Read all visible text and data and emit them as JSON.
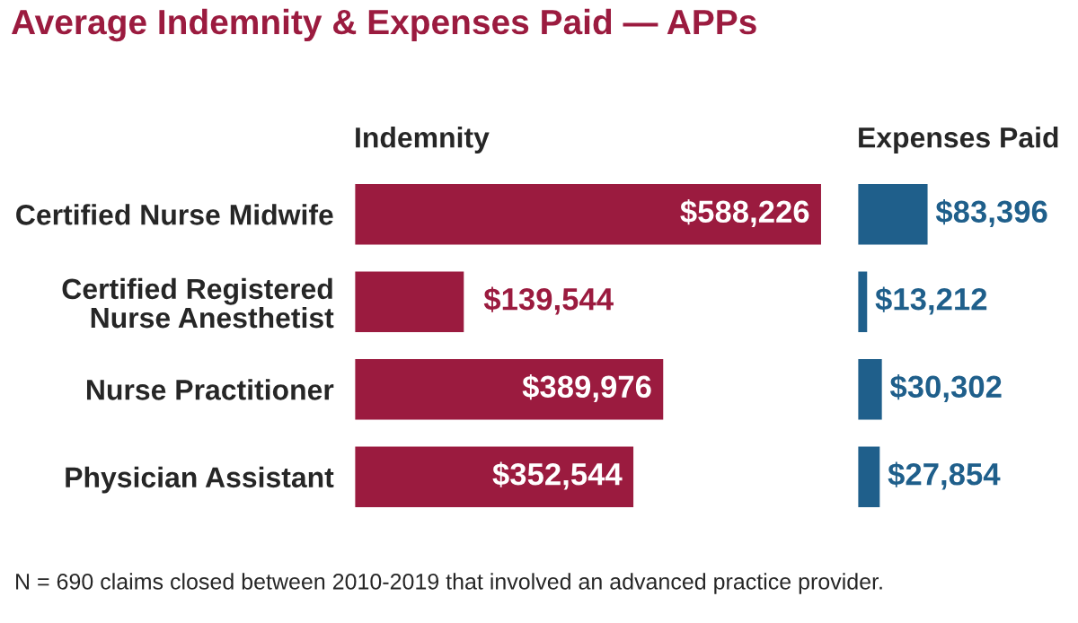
{
  "chart_data": [
    {
      "type": "bar",
      "orientation": "horizontal",
      "title": "Average Indemnity & Expenses Paid — APPs",
      "subtitle": "Indemnity",
      "categories": [
        "Certified Nurse Midwife",
        "Certified Registered\nNurse Anesthetist",
        "Nurse Practitioner",
        "Physician Assistant"
      ],
      "values": [
        588226,
        139544,
        389976,
        352544
      ],
      "color": "#9b1b3f",
      "value_labels": [
        "$588,226",
        "$139,544",
        "$389,976",
        "$352,544"
      ],
      "tick_labels": "y",
      "grid": false,
      "legend": false,
      "annotations": [
        "N = 690 claims closed between 2010-2019 that involved an advanced practice provider."
      ]
    },
    {
      "type": "bar",
      "orientation": "horizontal",
      "title": "Expenses Paid",
      "categories": [
        null,
        null,
        null,
        null
      ],
      "values": [
        83396,
        13212,
        30302,
        27854
      ],
      "color": "#1f5f8b",
      "value_labels": [
        "$83,396",
        "$13,212",
        "$30,302",
        "$27,854"
      ],
      "tick_labels": false,
      "grid": false,
      "legend": false
    }
  ]
}
